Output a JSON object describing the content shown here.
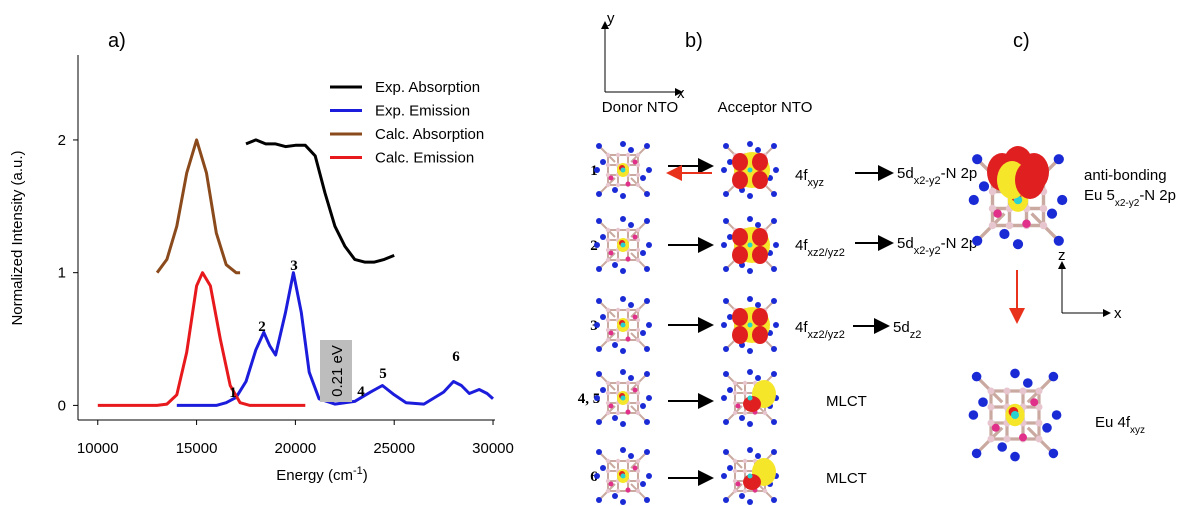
{
  "chart_data": {
    "type": "line",
    "panel_label": "a)",
    "x_label": {
      "text": "Energy (cm",
      "sup": "-1",
      "end": ")"
    },
    "y_label": "Normalized Intensity (a.u.)",
    "xlim": [
      9000,
      30100
    ],
    "ylim": [
      -0.11,
      2.64
    ],
    "xticks": [
      10000,
      15000,
      20000,
      25000,
      30000
    ],
    "yticks": [
      0,
      1,
      2
    ],
    "legend": "upper right",
    "series": [
      {
        "name": "Exp. Absorption",
        "color": "#000000",
        "x": [
          17500,
          18000,
          18500,
          19000,
          19500,
          20000,
          20500,
          21000,
          21500,
          22000,
          22500,
          23000,
          23500,
          24000,
          24500,
          25000
        ],
        "values": [
          1.97,
          2.0,
          1.97,
          1.97,
          1.95,
          1.96,
          1.96,
          1.88,
          1.6,
          1.35,
          1.2,
          1.1,
          1.08,
          1.08,
          1.1,
          1.13
        ]
      },
      {
        "name": "Exp. Emission",
        "color": "#1c1cdc",
        "x": [
          14000,
          16000,
          16500,
          17000,
          17500,
          18000,
          18400,
          18700,
          19000,
          19500,
          19900,
          20300,
          20700,
          21200,
          22000,
          23000,
          23800,
          24400,
          25000,
          25600,
          26500,
          27500,
          28000,
          28400,
          28800,
          29300,
          29700,
          30000
        ],
        "values": [
          0,
          0,
          0.02,
          0.06,
          0.18,
          0.42,
          0.55,
          0.45,
          0.38,
          0.7,
          1.0,
          0.7,
          0.25,
          0.05,
          0.01,
          0.03,
          0.1,
          0.15,
          0.08,
          0.02,
          0.01,
          0.1,
          0.18,
          0.15,
          0.09,
          0.12,
          0.09,
          0.05
        ]
      },
      {
        "name": "Calc. Absorption",
        "color": "#8b4a1c",
        "x": [
          13000,
          13500,
          14000,
          14500,
          15000,
          15500,
          16000,
          16500,
          17000,
          17200
        ],
        "values": [
          1.0,
          1.1,
          1.35,
          1.75,
          2.0,
          1.75,
          1.3,
          1.06,
          1.0,
          1.0
        ]
      },
      {
        "name": "Calc. Emission",
        "color": "#e8191c",
        "x": [
          10000,
          13000,
          13500,
          14000,
          14500,
          15000,
          15300,
          15700,
          16200,
          16700,
          17200,
          17700,
          20500
        ],
        "values": [
          0,
          0,
          0.01,
          0.08,
          0.4,
          0.9,
          1.0,
          0.9,
          0.5,
          0.15,
          0.02,
          0,
          0
        ]
      }
    ],
    "peak_labels": [
      "1",
      "2",
      "3",
      "4",
      "5",
      "6"
    ],
    "gap_annotation": "0.21 eV"
  },
  "panel_b": {
    "label": "b)",
    "axis_y": "y",
    "axis_x": "x",
    "donor": "Donor NTO",
    "acceptor": "Acceptor NTO",
    "rows": [
      {
        "number": "1",
        "from": {
          "main": "4f",
          "sub": "xyz"
        },
        "to": {
          "main": "5d",
          "sub": "x2-y2",
          "tail": "-N 2p"
        }
      },
      {
        "number": "2",
        "from": {
          "main": "4f",
          "sub": "xz2/yz2"
        },
        "to": {
          "main": "5d",
          "sub": "x2-y2",
          "tail": "-N 2p"
        }
      },
      {
        "number": "3",
        "from": {
          "main": "4f",
          "sub": "xz2/yz2"
        },
        "to": {
          "main": "5d",
          "sub": "z2"
        }
      },
      {
        "number": "4, 5",
        "text": "MLCT"
      },
      {
        "number": "6",
        "text": "MLCT"
      }
    ]
  },
  "panel_c": {
    "label": "c)",
    "upper_line1": "anti-bonding",
    "upper_main": "Eu 5",
    "upper_sub": "x2-y2",
    "upper_tail": "-N 2p",
    "axis_z": "z",
    "axis_x": "x",
    "lower_main": "Eu 4f",
    "lower_sub": "xyz"
  }
}
